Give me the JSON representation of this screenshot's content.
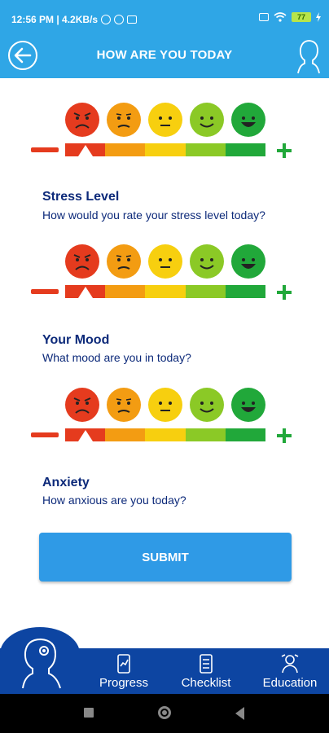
{
  "status_bar": {
    "time_and_speed": "12:56 PM | 4.2KB/s",
    "battery": "77"
  },
  "header": {
    "title": "HOW ARE YOU TODAY"
  },
  "scale_colors": [
    "#e53b1e",
    "#f39c12",
    "#f7cf0f",
    "#8bc926",
    "#21a83a"
  ],
  "face_colors": [
    "#e53b1e",
    "#f39c12",
    "#f7cf0f",
    "#8bc926",
    "#21a83a"
  ],
  "questions": [
    {
      "title": "Stress Level",
      "text": "How would you rate your stress level today?"
    },
    {
      "title": "Your Mood",
      "text": "What mood are you in today?"
    },
    {
      "title": "Anxiety",
      "text": "How anxious are you today?"
    }
  ],
  "submit_label": "SUBMIT",
  "nav": {
    "items": [
      {
        "label": "Progress"
      },
      {
        "label": "Checklist"
      },
      {
        "label": "Education"
      }
    ]
  }
}
